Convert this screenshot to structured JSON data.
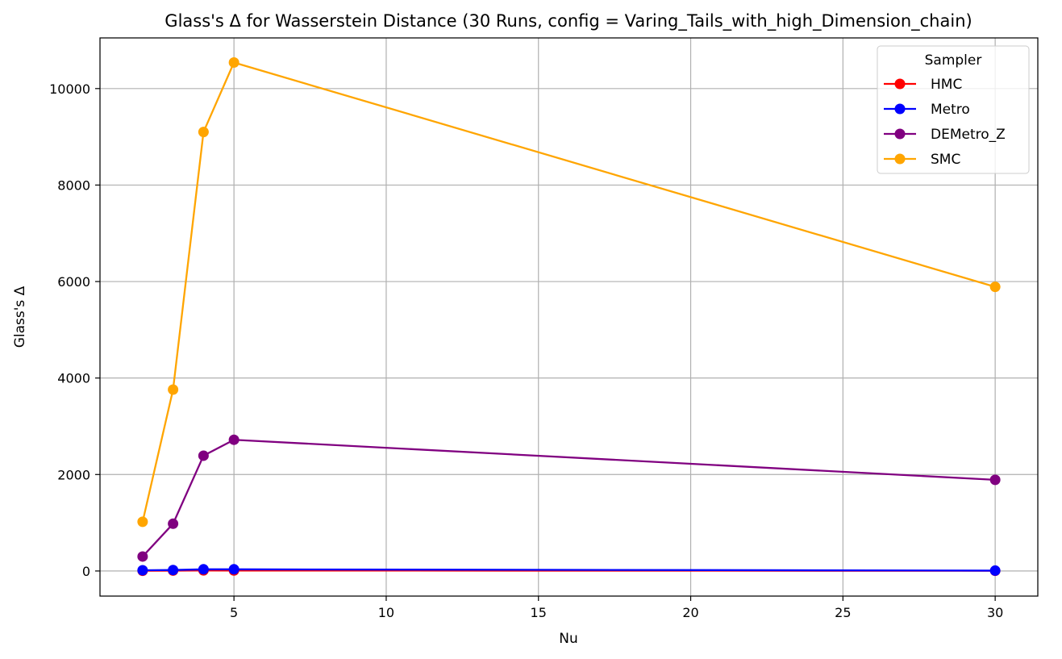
{
  "chart_data": {
    "type": "line",
    "title": "Glass's Δ for Wasserstein Distance (30 Runs, config = Varing_Tails_with_high_Dimension_chain)",
    "xlabel": "Nu",
    "ylabel": "Glass's Δ",
    "x": [
      2,
      3,
      4,
      5,
      30
    ],
    "xlim": [
      0.6,
      31.4
    ],
    "ylim": [
      -520,
      11050
    ],
    "xticks": [
      5,
      10,
      15,
      20,
      25,
      30
    ],
    "xtick_labels": [
      "5",
      "10",
      "15",
      "20",
      "25",
      "30"
    ],
    "yticks": [
      0,
      2000,
      4000,
      6000,
      8000,
      10000
    ],
    "ytick_labels": [
      "0",
      "2000",
      "4000",
      "6000",
      "8000",
      "10000"
    ],
    "grid": true,
    "legend": {
      "title": "Sampler",
      "placement": "top-right"
    },
    "series": [
      {
        "name": "HMC",
        "color": "#ff0000",
        "values": [
          5,
          8,
          12,
          10,
          4
        ]
      },
      {
        "name": "Metro",
        "color": "#0000ff",
        "values": [
          15,
          20,
          35,
          35,
          8
        ]
      },
      {
        "name": "DEMetro_Z",
        "color": "#800080",
        "values": [
          300,
          980,
          2390,
          2720,
          1890
        ]
      },
      {
        "name": "SMC",
        "color": "#ffa500",
        "values": [
          1020,
          3760,
          9100,
          10540,
          5890
        ]
      }
    ]
  }
}
